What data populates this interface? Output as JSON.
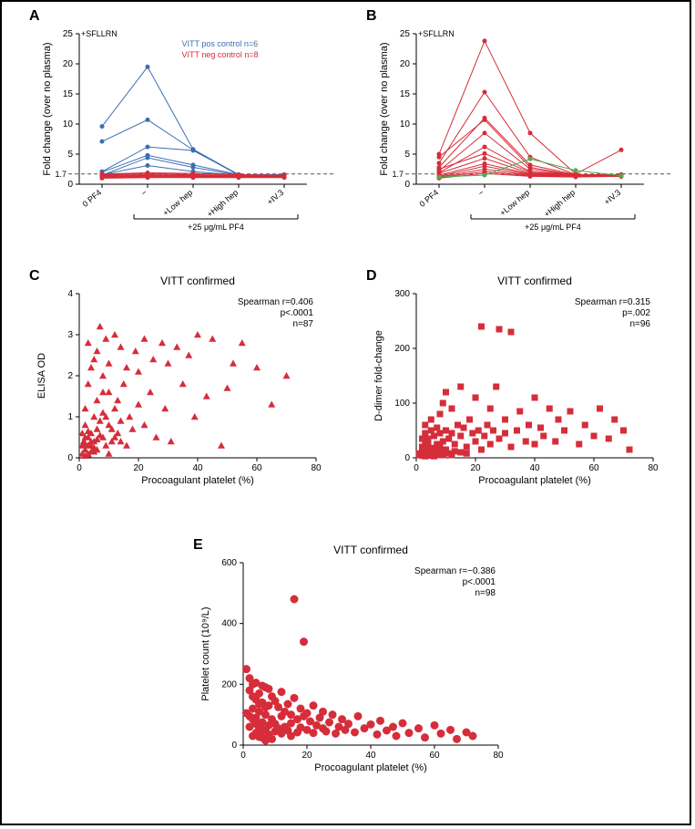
{
  "colors": {
    "blue": "#3b6fb0",
    "red": "#d62d3a",
    "green": "#4caf50",
    "axis": "#000000",
    "grid_dash": "#888888",
    "bg": "#ffffff"
  },
  "panelA": {
    "label": "A",
    "annotation": "+SFLLRN",
    "legend_blue": "VITT pos control n=6",
    "legend_red": "VITT neg control n=8",
    "y_label": "Fold change (over no plasma)",
    "y_lim": [
      0,
      25
    ],
    "y_ticks": [
      0,
      5,
      10,
      15,
      20,
      25
    ],
    "threshold": 1.7,
    "x_categories": [
      "0 PF4",
      "−",
      "+Low hep",
      "+High hep",
      "+IV.3"
    ],
    "x_bracket_label": "+25 μg/mL PF4",
    "blue_series": [
      [
        9.6,
        19.5,
        5.8,
        1.6,
        1.5
      ],
      [
        7.1,
        10.7,
        5.7,
        1.5,
        1.6
      ],
      [
        2.1,
        6.2,
        5.6,
        1.6,
        1.5
      ],
      [
        2.0,
        4.8,
        3.2,
        1.6,
        1.6
      ],
      [
        1.5,
        4.4,
        2.8,
        1.5,
        1.5
      ],
      [
        1.6,
        3.1,
        2.1,
        1.5,
        1.5
      ]
    ],
    "red_series": [
      [
        1.7,
        1.9,
        1.8,
        1.6,
        1.5
      ],
      [
        1.6,
        1.8,
        1.6,
        1.5,
        1.5
      ],
      [
        1.5,
        1.6,
        1.5,
        1.5,
        1.4
      ],
      [
        1.4,
        1.5,
        1.4,
        1.4,
        1.4
      ],
      [
        1.3,
        1.4,
        1.3,
        1.3,
        1.3
      ],
      [
        1.2,
        1.3,
        1.3,
        1.2,
        1.3
      ],
      [
        1.1,
        1.2,
        1.2,
        1.2,
        1.2
      ],
      [
        1.0,
        1.1,
        1.1,
        1.1,
        1.1
      ]
    ]
  },
  "panelB": {
    "label": "B",
    "annotation": "+SFLLRN",
    "y_label": "Fold change (over no plasma)",
    "y_lim": [
      0,
      25
    ],
    "y_ticks": [
      0,
      5,
      10,
      15,
      20,
      25
    ],
    "threshold": 1.7,
    "x_categories": [
      "0 PF4",
      "−",
      "+Low hep",
      "+High hep",
      "+IV.3"
    ],
    "x_bracket_label": "+25 μg/mL PF4",
    "red_series": [
      [
        5.0,
        23.8,
        8.5,
        1.7,
        5.7
      ],
      [
        3.5,
        15.3,
        4.5,
        1.6,
        1.6
      ],
      [
        2.8,
        11.0,
        3.2,
        1.6,
        1.6
      ],
      [
        4.5,
        10.7,
        2.8,
        1.5,
        1.6
      ],
      [
        2.2,
        8.5,
        2.5,
        1.5,
        1.5
      ],
      [
        1.9,
        6.2,
        2.1,
        1.6,
        1.5
      ],
      [
        2.5,
        5.1,
        2.0,
        1.5,
        1.5
      ],
      [
        1.8,
        4.3,
        1.8,
        1.5,
        1.5
      ],
      [
        1.5,
        3.4,
        1.7,
        1.4,
        1.4
      ],
      [
        1.3,
        3.0,
        1.6,
        1.4,
        1.4
      ],
      [
        1.2,
        2.5,
        1.5,
        1.3,
        1.4
      ],
      [
        1.1,
        2.1,
        1.4,
        1.3,
        1.3
      ],
      [
        1.0,
        1.8,
        1.3,
        1.2,
        1.3
      ]
    ],
    "green_series": [
      [
        1.2,
        1.5,
        4.2,
        2.3,
        1.4
      ]
    ]
  },
  "panelC": {
    "label": "C",
    "title": "VITT confirmed",
    "x_label": "Procoagulant platelet (%)",
    "y_label": "ELISA OD",
    "x_lim": [
      0,
      80
    ],
    "y_lim": [
      0,
      4
    ],
    "x_ticks": [
      0,
      20,
      40,
      60,
      80
    ],
    "y_ticks": [
      0,
      1,
      2,
      3,
      4
    ],
    "stats": [
      "Spearman r=0.406",
      "p<.0001",
      "n=87"
    ],
    "marker": "triangle",
    "color": "#d62d3a",
    "points": [
      [
        1,
        0.1
      ],
      [
        2,
        0.2
      ],
      [
        1.5,
        0.4
      ],
      [
        2,
        0.8
      ],
      [
        3,
        0.1
      ],
      [
        3,
        0.5
      ],
      [
        2,
        1.2
      ],
      [
        3,
        1.8
      ],
      [
        4,
        0.3
      ],
      [
        4,
        0.6
      ],
      [
        4,
        2.2
      ],
      [
        5,
        0.4
      ],
      [
        5,
        1.0
      ],
      [
        5,
        2.4
      ],
      [
        6,
        0.2
      ],
      [
        6,
        0.7
      ],
      [
        6,
        1.4
      ],
      [
        7,
        0.9
      ],
      [
        7,
        3.2
      ],
      [
        8,
        0.5
      ],
      [
        8,
        1.1
      ],
      [
        8,
        2.0
      ],
      [
        9,
        0.3
      ],
      [
        9,
        2.9
      ],
      [
        10,
        0.8
      ],
      [
        10,
        1.6
      ],
      [
        10,
        2.3
      ],
      [
        11,
        0.4
      ],
      [
        12,
        3.0
      ],
      [
        12,
        1.2
      ],
      [
        13,
        0.6
      ],
      [
        14,
        2.7
      ],
      [
        14,
        0.9
      ],
      [
        15,
        1.8
      ],
      [
        16,
        0.3
      ],
      [
        16,
        2.2
      ],
      [
        17,
        1.0
      ],
      [
        18,
        0.7
      ],
      [
        19,
        2.6
      ],
      [
        20,
        1.3
      ],
      [
        20,
        2.1
      ],
      [
        22,
        2.9
      ],
      [
        22,
        0.8
      ],
      [
        24,
        1.6
      ],
      [
        25,
        2.4
      ],
      [
        26,
        0.5
      ],
      [
        28,
        2.8
      ],
      [
        29,
        1.2
      ],
      [
        30,
        2.3
      ],
      [
        31,
        0.4
      ],
      [
        33,
        2.7
      ],
      [
        35,
        1.8
      ],
      [
        37,
        2.5
      ],
      [
        39,
        1.0
      ],
      [
        40,
        3.0
      ],
      [
        43,
        1.5
      ],
      [
        45,
        2.9
      ],
      [
        48,
        0.3
      ],
      [
        50,
        1.7
      ],
      [
        52,
        2.3
      ],
      [
        55,
        2.8
      ],
      [
        60,
        2.2
      ],
      [
        65,
        1.3
      ],
      [
        70,
        2.0
      ],
      [
        2,
        0.05
      ],
      [
        3,
        0.08
      ],
      [
        1,
        0.6
      ],
      [
        4,
        0.15
      ],
      [
        5,
        0.25
      ],
      [
        6,
        0.45
      ],
      [
        7,
        0.55
      ],
      [
        8,
        1.6
      ],
      [
        9,
        1.0
      ],
      [
        10,
        0.1
      ],
      [
        11,
        0.7
      ],
      [
        12,
        0.5
      ],
      [
        13,
        1.4
      ],
      [
        14,
        0.4
      ],
      [
        3,
        2.8
      ],
      [
        6,
        2.6
      ],
      [
        1,
        0.3
      ],
      [
        2,
        0.5
      ],
      [
        3,
        0.3
      ],
      [
        4,
        0.4
      ],
      [
        5,
        0.15
      ],
      [
        2,
        0.35
      ],
      [
        3,
        0.65
      ]
    ]
  },
  "panelD": {
    "label": "D",
    "title": "VITT confirmed",
    "x_label": "Procoagulant platelet (%)",
    "y_label": "D-dimer fold-change",
    "x_lim": [
      0,
      80
    ],
    "y_lim": [
      0,
      300
    ],
    "x_ticks": [
      0,
      20,
      40,
      60,
      80
    ],
    "y_ticks": [
      0,
      100,
      200,
      300
    ],
    "stats": [
      "Spearman r=0.315",
      "p=.002",
      "n=96"
    ],
    "marker": "square",
    "color": "#d62d3a",
    "points": [
      [
        1,
        5
      ],
      [
        2,
        10
      ],
      [
        2,
        20
      ],
      [
        3,
        8
      ],
      [
        3,
        30
      ],
      [
        3,
        45
      ],
      [
        4,
        15
      ],
      [
        4,
        35
      ],
      [
        5,
        12
      ],
      [
        5,
        50
      ],
      [
        5,
        70
      ],
      [
        6,
        18
      ],
      [
        6,
        40
      ],
      [
        7,
        25
      ],
      [
        7,
        55
      ],
      [
        8,
        10
      ],
      [
        8,
        45
      ],
      [
        8,
        80
      ],
      [
        9,
        30
      ],
      [
        9,
        100
      ],
      [
        10,
        15
      ],
      [
        10,
        50
      ],
      [
        10,
        120
      ],
      [
        11,
        35
      ],
      [
        12,
        5
      ],
      [
        12,
        45
      ],
      [
        12,
        90
      ],
      [
        13,
        25
      ],
      [
        14,
        60
      ],
      [
        15,
        10
      ],
      [
        15,
        40
      ],
      [
        15,
        130
      ],
      [
        16,
        55
      ],
      [
        17,
        20
      ],
      [
        18,
        70
      ],
      [
        19,
        45
      ],
      [
        20,
        30
      ],
      [
        20,
        110
      ],
      [
        21,
        50
      ],
      [
        22,
        15
      ],
      [
        22,
        240
      ],
      [
        23,
        40
      ],
      [
        24,
        60
      ],
      [
        25,
        25
      ],
      [
        25,
        90
      ],
      [
        26,
        50
      ],
      [
        27,
        130
      ],
      [
        28,
        35
      ],
      [
        28,
        235
      ],
      [
        30,
        45
      ],
      [
        30,
        70
      ],
      [
        32,
        20
      ],
      [
        32,
        230
      ],
      [
        34,
        50
      ],
      [
        35,
        85
      ],
      [
        37,
        30
      ],
      [
        38,
        60
      ],
      [
        40,
        110
      ],
      [
        40,
        25
      ],
      [
        42,
        55
      ],
      [
        43,
        40
      ],
      [
        45,
        90
      ],
      [
        47,
        30
      ],
      [
        48,
        70
      ],
      [
        50,
        50
      ],
      [
        52,
        85
      ],
      [
        55,
        25
      ],
      [
        57,
        60
      ],
      [
        60,
        40
      ],
      [
        62,
        90
      ],
      [
        65,
        35
      ],
      [
        67,
        70
      ],
      [
        70,
        50
      ],
      [
        72,
        15
      ],
      [
        3,
        3
      ],
      [
        4,
        5
      ],
      [
        5,
        4
      ],
      [
        6,
        3
      ],
      [
        7,
        5
      ],
      [
        8,
        6
      ],
      [
        2,
        4
      ],
      [
        1,
        8
      ],
      [
        4,
        12
      ],
      [
        6,
        8
      ],
      [
        9,
        5
      ],
      [
        11,
        8
      ],
      [
        13,
        12
      ],
      [
        17,
        8
      ],
      [
        2,
        35
      ],
      [
        3,
        60
      ],
      [
        4,
        25
      ],
      [
        5,
        8
      ],
      [
        6,
        15
      ],
      [
        7,
        12
      ],
      [
        8,
        20
      ],
      [
        9,
        15
      ]
    ]
  },
  "panelE": {
    "label": "E",
    "title": "VITT confirmed",
    "x_label": "Procoagulant platelet (%)",
    "y_label": "Platelet count (10⁹/L)",
    "x_lim": [
      0,
      80
    ],
    "y_lim": [
      0,
      600
    ],
    "x_ticks": [
      0,
      20,
      40,
      60,
      80
    ],
    "y_ticks": [
      0,
      200,
      400,
      600
    ],
    "stats": [
      "Spearman r=−0.386",
      "p<.0001",
      "n=98"
    ],
    "marker": "circle",
    "color": "#d62d3a",
    "points": [
      [
        1,
        250
      ],
      [
        2,
        180
      ],
      [
        2,
        60
      ],
      [
        3,
        120
      ],
      [
        3,
        200
      ],
      [
        3,
        30
      ],
      [
        4,
        150
      ],
      [
        4,
        90
      ],
      [
        4,
        40
      ],
      [
        5,
        170
      ],
      [
        5,
        110
      ],
      [
        5,
        55
      ],
      [
        6,
        140
      ],
      [
        6,
        75
      ],
      [
        6,
        25
      ],
      [
        7,
        190
      ],
      [
        7,
        100
      ],
      [
        7,
        50
      ],
      [
        8,
        130
      ],
      [
        8,
        65
      ],
      [
        8,
        35
      ],
      [
        9,
        160
      ],
      [
        9,
        85
      ],
      [
        9,
        20
      ],
      [
        10,
        145
      ],
      [
        10,
        70
      ],
      [
        10,
        45
      ],
      [
        11,
        125
      ],
      [
        11,
        55
      ],
      [
        12,
        175
      ],
      [
        12,
        95
      ],
      [
        12,
        38
      ],
      [
        13,
        110
      ],
      [
        13,
        60
      ],
      [
        14,
        135
      ],
      [
        14,
        48
      ],
      [
        15,
        100
      ],
      [
        15,
        72
      ],
      [
        15,
        30
      ],
      [
        16,
        155
      ],
      [
        16,
        480
      ],
      [
        17,
        85
      ],
      [
        17,
        42
      ],
      [
        18,
        120
      ],
      [
        18,
        58
      ],
      [
        19,
        95
      ],
      [
        19,
        340
      ],
      [
        20,
        105
      ],
      [
        20,
        50
      ],
      [
        21,
        78
      ],
      [
        22,
        130
      ],
      [
        22,
        40
      ],
      [
        23,
        65
      ],
      [
        24,
        90
      ],
      [
        25,
        55
      ],
      [
        25,
        110
      ],
      [
        26,
        45
      ],
      [
        27,
        75
      ],
      [
        28,
        100
      ],
      [
        29,
        38
      ],
      [
        30,
        60
      ],
      [
        31,
        85
      ],
      [
        32,
        50
      ],
      [
        33,
        70
      ],
      [
        35,
        42
      ],
      [
        36,
        95
      ],
      [
        38,
        55
      ],
      [
        40,
        68
      ],
      [
        42,
        35
      ],
      [
        43,
        80
      ],
      [
        45,
        48
      ],
      [
        47,
        60
      ],
      [
        48,
        30
      ],
      [
        50,
        72
      ],
      [
        52,
        40
      ],
      [
        55,
        55
      ],
      [
        57,
        25
      ],
      [
        60,
        65
      ],
      [
        62,
        38
      ],
      [
        65,
        50
      ],
      [
        67,
        20
      ],
      [
        70,
        42
      ],
      [
        72,
        30
      ],
      [
        2,
        220
      ],
      [
        3,
        160
      ],
      [
        4,
        205
      ],
      [
        5,
        27
      ],
      [
        6,
        195
      ],
      [
        7,
        15
      ],
      [
        8,
        185
      ],
      [
        1,
        105
      ],
      [
        2,
        95
      ],
      [
        3,
        85
      ],
      [
        4,
        70
      ],
      [
        5,
        135
      ],
      [
        6,
        50
      ],
      [
        7,
        125
      ],
      [
        8,
        30
      ]
    ]
  }
}
